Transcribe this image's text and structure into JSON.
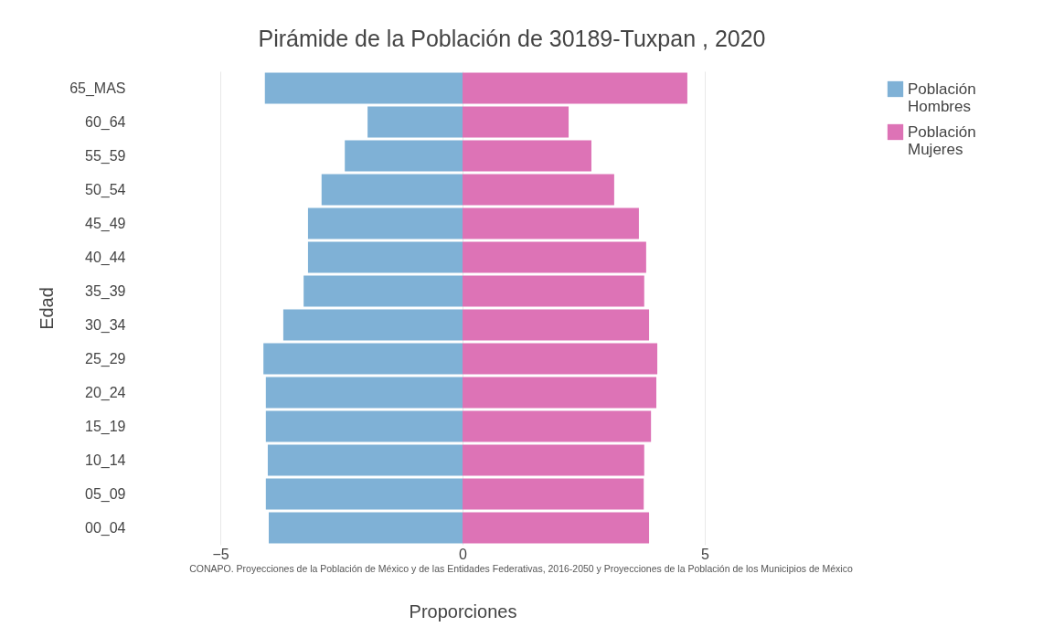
{
  "chart_data": {
    "type": "bar",
    "orientation": "horizontal",
    "title": "Pirámide de la Población de 30189-Tuxpan ,  2020",
    "xlabel": "Proporciones",
    "ylabel": "Edad",
    "categories": [
      "65_MAS",
      "60_64",
      "55_59",
      "50_54",
      "45_49",
      "40_44",
      "35_39",
      "30_34",
      "25_29",
      "20_24",
      "15_19",
      "10_14",
      "05_09",
      "00_04"
    ],
    "series": [
      {
        "name": "Población Hombres",
        "color": "#7fb1d6",
        "values": [
          -4.08,
          -1.96,
          -2.43,
          -2.91,
          -3.19,
          -3.19,
          -3.28,
          -3.7,
          -4.11,
          -4.06,
          -4.06,
          -4.02,
          -4.06,
          -4.0
        ]
      },
      {
        "name": "Población Mujeres",
        "color": "#dd73b6",
        "values": [
          4.64,
          2.19,
          2.66,
          3.13,
          3.64,
          3.79,
          3.75,
          3.85,
          4.02,
          4.0,
          3.89,
          3.75,
          3.74,
          3.85
        ]
      }
    ],
    "xlim": [
      -5,
      5
    ],
    "stacked": true,
    "xticks": [
      {
        "value": -5,
        "label": "−5"
      },
      0,
      5
    ],
    "grid": "x",
    "legend": "top right",
    "annotations": [
      "CONAPO. Proyecciones de la Población de México y de las Entidades Federativas, 2016-2050 y Proyecciones de la Población de los Municipios de México"
    ]
  }
}
